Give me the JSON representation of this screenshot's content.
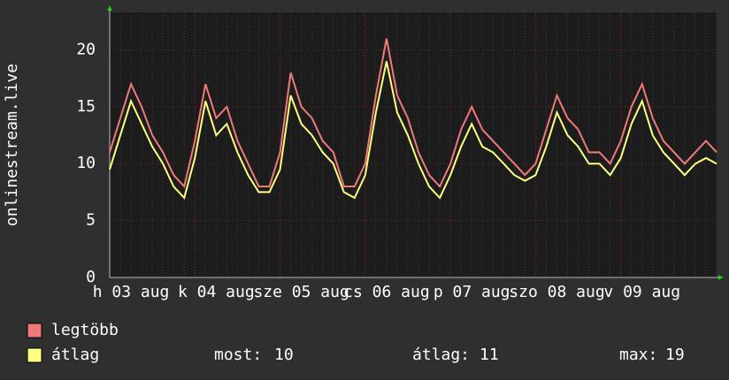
{
  "chart_data": {
    "type": "line",
    "y_label": "onlinestream.live",
    "categories": [
      null,
      null,
      "h 03 aug",
      null,
      null,
      null,
      null,
      null,
      null,
      null,
      "k 04 aug",
      null,
      null,
      null,
      null,
      null,
      null,
      null,
      "sze 05 aug",
      null,
      null,
      null,
      null,
      null,
      null,
      null,
      "cs 06 aug",
      null,
      null,
      null,
      null,
      null,
      null,
      null,
      "p 07 aug",
      null,
      null,
      null,
      null,
      null,
      null,
      null,
      "szo 08 aug",
      null,
      null,
      null,
      null,
      null,
      null,
      null,
      "v 09 aug",
      null,
      null,
      null,
      null,
      null,
      null,
      null
    ],
    "series": [
      {
        "name": "legtöbb",
        "color": "#f07a7a",
        "values": [
          11,
          14,
          17,
          15,
          12.5,
          11,
          9,
          8,
          12,
          17,
          14,
          15,
          12,
          10,
          8,
          8,
          11,
          18,
          15,
          14,
          12,
          11,
          8,
          8,
          10,
          16,
          21,
          16,
          14,
          11,
          9,
          8,
          10,
          13,
          15,
          13,
          12,
          11,
          10,
          9,
          10,
          13,
          16,
          14,
          13,
          11,
          11,
          10,
          12,
          15,
          17,
          14,
          12,
          11,
          10,
          11,
          12,
          11
        ]
      },
      {
        "name": "átlag",
        "color": "#ffff80",
        "values": [
          9.5,
          12.5,
          15.5,
          13.5,
          11.5,
          10,
          8,
          7,
          10.5,
          15.5,
          12.5,
          13.5,
          11,
          9,
          7.5,
          7.5,
          9.5,
          16,
          13.5,
          12.5,
          11,
          10,
          7.5,
          7,
          9,
          14.5,
          19,
          14.5,
          12.5,
          10,
          8,
          7,
          9,
          11.5,
          13.5,
          11.5,
          11,
          10,
          9,
          8.5,
          9,
          11.5,
          14.5,
          12.5,
          11.5,
          10,
          10,
          9,
          10.5,
          13.5,
          15.5,
          12.5,
          11,
          10,
          9,
          10,
          10.5,
          10
        ]
      }
    ],
    "ylim": [
      0,
      23.3
    ],
    "yticks": [
      0,
      5,
      10,
      15,
      20
    ],
    "grid": true,
    "stats": [
      {
        "label": "most:",
        "value": 10
      },
      {
        "label": "átlag:",
        "value": 11
      },
      {
        "label": "max:",
        "value": 19
      }
    ]
  }
}
